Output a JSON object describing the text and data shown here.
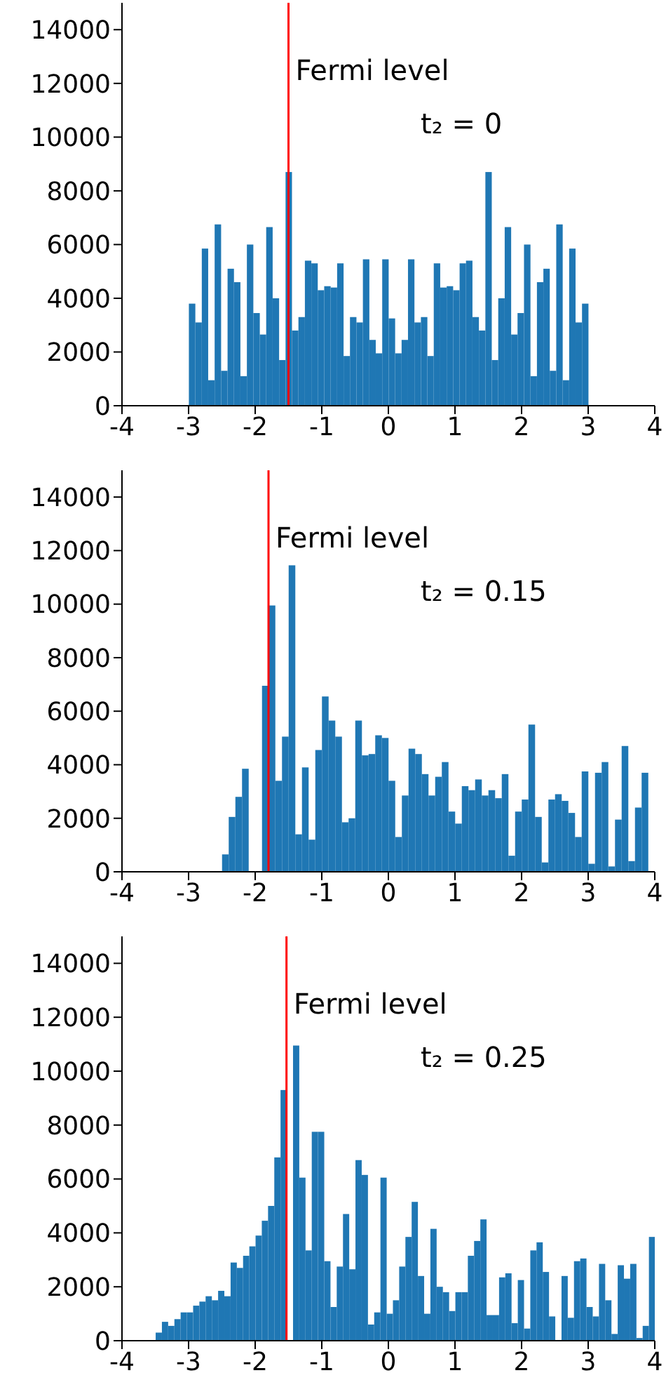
{
  "chart_data": [
    {
      "type": "histogram",
      "color": "#1f77b4",
      "xlim": [
        -4,
        4
      ],
      "xticks": [
        -4,
        -3,
        -2,
        -1,
        0,
        1,
        2,
        3,
        4
      ],
      "ylim": [
        0,
        15000
      ],
      "yticks": [
        0,
        2000,
        4000,
        6000,
        8000,
        10000,
        12000,
        14000
      ],
      "bins": [
        -3,
        -2.903,
        -2.806,
        -2.71,
        -2.613,
        -2.516,
        -2.419,
        -2.323,
        -2.226,
        -2.129,
        -2.032,
        -1.935,
        -1.839,
        -1.742,
        -1.645,
        -1.548,
        -1.452,
        -1.355,
        -1.258,
        -1.161,
        -1.065,
        -0.968,
        -0.871,
        -0.774,
        -0.677,
        -0.581,
        -0.484,
        -0.387,
        -0.29,
        -0.194,
        -0.097,
        0,
        0.097,
        0.194,
        0.29,
        0.387,
        0.484,
        0.581,
        0.677,
        0.774,
        0.871,
        0.968,
        1.065,
        1.161,
        1.258,
        1.355,
        1.452,
        1.548,
        1.645,
        1.742,
        1.839,
        1.935,
        2.032,
        2.129,
        2.226,
        2.323,
        2.419,
        2.516,
        2.613,
        2.71,
        2.806,
        2.903,
        3
      ],
      "values": [
        3800,
        3100,
        5850,
        950,
        6750,
        1300,
        5100,
        4600,
        1100,
        6000,
        3450,
        2650,
        6650,
        4000,
        1700,
        8700,
        2800,
        3300,
        5400,
        5300,
        4300,
        4450,
        4400,
        5300,
        1850,
        3300,
        3100,
        5450,
        2450,
        1950,
        5450,
        3250,
        1950,
        2450,
        5450,
        3100,
        3300,
        1850,
        5300,
        4400,
        4450,
        4300,
        5300,
        5400,
        3300,
        2800,
        8700,
        1700,
        4000,
        6650,
        2650,
        3450,
        6000,
        1100,
        4600,
        5100,
        1300,
        6750,
        950,
        5850,
        3100,
        3800
      ],
      "ref_lines": [
        {
          "axis": "x",
          "value": -1.5,
          "label": "Fermi level",
          "color": "#ff0000"
        }
      ],
      "annotations": [
        "t₂ = 0"
      ]
    },
    {
      "type": "histogram",
      "color": "#1f77b4",
      "xlim": [
        -4,
        4
      ],
      "xticks": [
        -4,
        -3,
        -2,
        -1,
        0,
        1,
        2,
        3,
        4
      ],
      "ylim": [
        0,
        15000
      ],
      "yticks": [
        0,
        2000,
        4000,
        6000,
        8000,
        10000,
        12000,
        14000
      ],
      "bins": [
        -2.5,
        -2.4,
        -2.3,
        -2.2,
        -2.1,
        -2,
        -1.9,
        -1.8,
        -1.7,
        -1.6,
        -1.5,
        -1.4,
        -1.3,
        -1.2,
        -1.1,
        -1,
        -0.9,
        -0.8,
        -0.7,
        -0.6,
        -0.5,
        -0.4,
        -0.3,
        -0.2,
        -0.1,
        0,
        0.1,
        0.2,
        0.3,
        0.4,
        0.5,
        0.6,
        0.7,
        0.8,
        0.9,
        1,
        1.1,
        1.2,
        1.3,
        1.4,
        1.5,
        1.6,
        1.7,
        1.8,
        1.9,
        2,
        2.1,
        2.2,
        2.3,
        2.4,
        2.5,
        2.6,
        2.7,
        2.8,
        2.9,
        3,
        3.1,
        3.2,
        3.3,
        3.4,
        3.5,
        3.6,
        3.7,
        3.8,
        3.9
      ],
      "values": [
        650,
        2050,
        2800,
        3850,
        null,
        null,
        6950,
        9950,
        3400,
        5050,
        11450,
        1400,
        3900,
        1200,
        4550,
        6550,
        5650,
        5050,
        1850,
        2000,
        5650,
        4350,
        4400,
        5100,
        5000,
        3400,
        1300,
        2850,
        4600,
        4400,
        3650,
        2850,
        3550,
        4100,
        2250,
        1800,
        3200,
        3050,
        3450,
        2850,
        3050,
        2750,
        3650,
        600,
        2250,
        2700,
        5500,
        2050,
        350,
        2700,
        2900,
        2650,
        2200,
        1300,
        3750,
        300,
        3700,
        4100,
        200,
        1950,
        4700,
        400,
        2400,
        3700
      ],
      "ref_lines": [
        {
          "axis": "x",
          "value": -1.8,
          "label": "Fermi level",
          "color": "#ff0000"
        }
      ],
      "annotations": [
        "t₂ = 0.15"
      ]
    },
    {
      "type": "histogram",
      "color": "#1f77b4",
      "xlim": [
        -4,
        4
      ],
      "xticks": [
        -4,
        -3,
        -2,
        -1,
        0,
        1,
        2,
        3,
        4
      ],
      "ylim": [
        0,
        15000
      ],
      "yticks": [
        0,
        2000,
        4000,
        6000,
        8000,
        10000,
        12000,
        14000
      ],
      "bins": [
        -3.5,
        -3.40625,
        -3.3125,
        -3.21875,
        -3.125,
        -3.03125,
        -2.9375,
        -2.84375,
        -2.75,
        -2.65625,
        -2.5625,
        -2.46875,
        -2.375,
        -2.28125,
        -2.1875,
        -2.09375,
        -2,
        -1.90625,
        -1.8125,
        -1.71875,
        -1.625,
        -1.53125,
        -1.4375,
        -1.34375,
        -1.25,
        -1.15625,
        -1.0625,
        -0.96875,
        -0.875,
        -0.78125,
        -0.6875,
        -0.59375,
        -0.5,
        -0.40625,
        -0.3125,
        -0.21875,
        -0.125,
        -0.03125,
        0.0625,
        0.15625,
        0.25,
        0.34375,
        0.4375,
        0.53125,
        0.625,
        0.71875,
        0.8125,
        0.90625,
        1,
        1.09375,
        1.1875,
        1.28125,
        1.375,
        1.46875,
        1.5625,
        1.65625,
        1.75,
        1.84375,
        1.9375,
        2.03125,
        2.125,
        2.21875,
        2.3125,
        2.40625,
        2.5,
        2.59375,
        2.6875,
        2.78125,
        2.875,
        2.96875,
        3.0625,
        3.15625,
        3.25,
        3.34375,
        3.4375,
        3.53125,
        3.625,
        3.71875,
        3.8125,
        3.90625,
        4
      ],
      "values": [
        300,
        700,
        550,
        800,
        1050,
        1050,
        1300,
        1450,
        1650,
        1500,
        1850,
        1650,
        2900,
        2700,
        3150,
        3500,
        3900,
        4450,
        5000,
        6800,
        9300,
        null,
        10950,
        6050,
        3350,
        7750,
        7750,
        2950,
        1250,
        2750,
        4700,
        2650,
        6700,
        6150,
        600,
        1050,
        6050,
        1000,
        1500,
        2750,
        3850,
        5150,
        2400,
        1000,
        4150,
        2000,
        1800,
        1100,
        1800,
        1800,
        3150,
        3700,
        4500,
        950,
        950,
        2350,
        2500,
        650,
        2250,
        450,
        3350,
        3650,
        2550,
        900,
        0,
        2400,
        850,
        2950,
        3050,
        1250,
        900,
        2850,
        1500,
        250,
        2800,
        2300,
        2850,
        100,
        550,
        3850
      ],
      "ref_lines": [
        {
          "axis": "x",
          "value": -1.53,
          "label": "Fermi level",
          "color": "#ff0000"
        }
      ],
      "annotations": [
        "t₂ = 0.25"
      ]
    }
  ]
}
